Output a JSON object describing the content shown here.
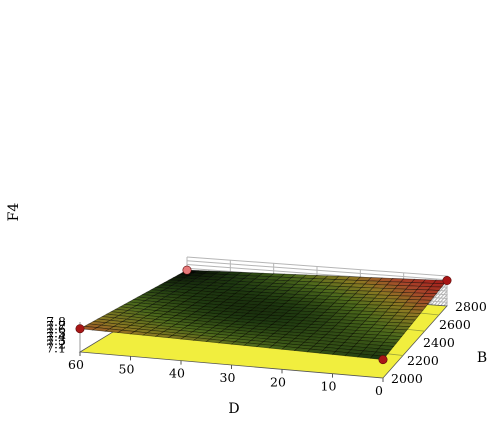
{
  "chart_data": {
    "type": "surface3d",
    "zlabel": "F4",
    "xlabel": "D",
    "ylabel": "B",
    "z_ticks": [
      "7.1",
      "7.2",
      "7.3",
      "7.4",
      "7.5",
      "7.6",
      "7.7",
      "7.8"
    ],
    "x_ticks": [
      "60",
      "50",
      "40",
      "30",
      "20",
      "10",
      "0"
    ],
    "y_ticks": [
      "2000",
      "2200",
      "2400",
      "2600",
      "2800"
    ],
    "zlim": [
      7.0,
      7.8
    ],
    "xlim": [
      0,
      60
    ],
    "ylim": [
      2000,
      2800
    ],
    "corner_points": [
      {
        "D": 60,
        "B": 2000,
        "F4": 7.62
      },
      {
        "D": 60,
        "B": 2800,
        "F4": 7.45
      },
      {
        "D": 0,
        "B": 2800,
        "F4": 7.68
      },
      {
        "D": 0,
        "B": 2000,
        "F4": 7.49
      }
    ],
    "surface_colormap": [
      "#000000",
      "#1f3a10",
      "#4d6a1c",
      "#8a7a22",
      "#a8452a",
      "#a01818"
    ],
    "contour_floor_color": "#f1ee3e",
    "point_color": "#a81616",
    "point_color_light": "#e87a7a",
    "grid": true
  }
}
